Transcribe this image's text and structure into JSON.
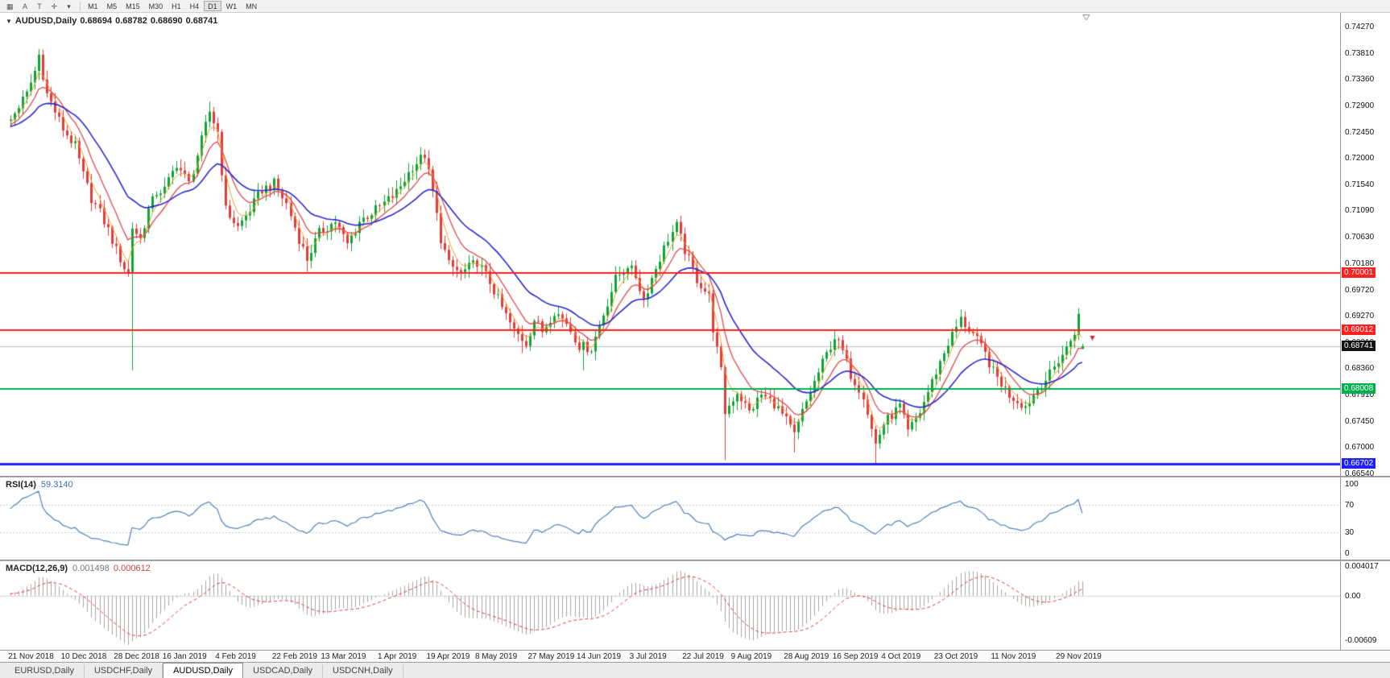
{
  "toolbar": {
    "icon_buttons": [
      {
        "name": "tile-windows-icon",
        "glyph": "▦"
      },
      {
        "name": "cursor-tool-icon",
        "glyph": "A"
      },
      {
        "name": "text-tool-icon",
        "glyph": "T"
      },
      {
        "name": "crosshair-tool-icon",
        "glyph": "✛"
      },
      {
        "name": "tools-dropdown-icon",
        "glyph": "▾"
      }
    ],
    "timeframes": [
      "M1",
      "M5",
      "M15",
      "M30",
      "H1",
      "H4",
      "D1",
      "W1",
      "MN"
    ],
    "active_timeframe": "D1"
  },
  "chart": {
    "symbol_icon": "▼",
    "symbol": "AUDUSD,Daily",
    "ohlc": {
      "open": "0.68694",
      "high": "0.68782",
      "low": "0.68690",
      "close": "0.68741"
    }
  },
  "rsi": {
    "name": "RSI(14)",
    "value": "59.3140",
    "line_color": "#4F81BD",
    "levels": [
      70,
      30
    ],
    "ticks": [
      {
        "label": "100",
        "value": 100
      },
      {
        "label": "70",
        "value": 70
      },
      {
        "label": "30",
        "value": 30
      },
      {
        "label": "0",
        "value": 0
      }
    ]
  },
  "macd": {
    "name": "MACD(12,26,9)",
    "main_value": "0.001498",
    "signal_value": "0.000612",
    "histogram_color": "#A6A6A6",
    "signal_color": "#DD3C3C",
    "ticks": [
      {
        "label": "0.004017",
        "value": 0.004017
      },
      {
        "label": "0.00",
        "value": 0
      },
      {
        "label": "-0.00609",
        "value": -0.00609
      }
    ]
  },
  "date_axis": {
    "labels": [
      {
        "text": "21 Nov 2018",
        "slot": 2
      },
      {
        "text": "10 Dec 2018",
        "slot": 15
      },
      {
        "text": "28 Dec 2018",
        "slot": 28
      },
      {
        "text": "16 Jan 2019",
        "slot": 40
      },
      {
        "text": "4 Feb 2019",
        "slot": 53
      },
      {
        "text": "22 Feb 2019",
        "slot": 67
      },
      {
        "text": "13 Mar 2019",
        "slot": 79
      },
      {
        "text": "1 Apr 2019",
        "slot": 93
      },
      {
        "text": "19 Apr 2019",
        "slot": 105
      },
      {
        "text": "8 May 2019",
        "slot": 117
      },
      {
        "text": "27 May 2019",
        "slot": 130
      },
      {
        "text": "14 Jun 2019",
        "slot": 142
      },
      {
        "text": "3 Jul 2019",
        "slot": 155
      },
      {
        "text": "22 Jul 2019",
        "slot": 168
      },
      {
        "text": "9 Aug 2019",
        "slot": 180
      },
      {
        "text": "28 Aug 2019",
        "slot": 193
      },
      {
        "text": "16 Sep 2019",
        "slot": 205
      },
      {
        "text": "4 Oct 2019",
        "slot": 217
      },
      {
        "text": "23 Oct 2019",
        "slot": 230
      },
      {
        "text": "11 Nov 2019",
        "slot": 244
      },
      {
        "text": "29 Nov 2019",
        "slot": 260
      }
    ]
  },
  "tabs": {
    "items": [
      "EURUSD,Daily",
      "USDCHF,Daily",
      "AUDUSD,Daily",
      "USDCAD,Daily",
      "USDCNH,Daily"
    ],
    "active_index": 2
  },
  "chart_data": {
    "type": "candlestick",
    "symbol": "AUDUSD",
    "period": "Daily",
    "slots_total": 330,
    "price_min": 0.66497,
    "price_max": 0.74507,
    "y_ticks": [
      "0.74270",
      "0.73810",
      "0.73360",
      "0.72900",
      "0.72450",
      "0.72000",
      "0.71540",
      "0.71090",
      "0.70630",
      "0.70180",
      "0.69720",
      "0.69270",
      "0.68810",
      "0.68360",
      "0.67910",
      "0.67450",
      "0.67000",
      "0.66540"
    ],
    "close_anchors": [
      [
        -30,
        0.723
      ],
      [
        -20,
        0.727
      ],
      [
        -10,
        0.7245
      ],
      [
        0,
        0.7255
      ],
      [
        2,
        0.7265
      ],
      [
        4,
        0.729
      ],
      [
        6,
        0.731
      ],
      [
        8,
        0.735
      ],
      [
        9,
        0.7378
      ],
      [
        11,
        0.731
      ],
      [
        13,
        0.728
      ],
      [
        15,
        0.725
      ],
      [
        18,
        0.722
      ],
      [
        20,
        0.717
      ],
      [
        22,
        0.713
      ],
      [
        24,
        0.7105
      ],
      [
        26,
        0.7075
      ],
      [
        28,
        0.704
      ],
      [
        30,
        0.701
      ],
      [
        31,
        0.7
      ],
      [
        32,
        0.708
      ],
      [
        34,
        0.706
      ],
      [
        36,
        0.711
      ],
      [
        38,
        0.714
      ],
      [
        40,
        0.7145
      ],
      [
        43,
        0.719
      ],
      [
        46,
        0.7155
      ],
      [
        49,
        0.723
      ],
      [
        51,
        0.728
      ],
      [
        53,
        0.7245
      ],
      [
        55,
        0.711
      ],
      [
        58,
        0.708
      ],
      [
        61,
        0.711
      ],
      [
        64,
        0.7145
      ],
      [
        67,
        0.7155
      ],
      [
        70,
        0.712
      ],
      [
        73,
        0.706
      ],
      [
        75,
        0.7025
      ],
      [
        78,
        0.707
      ],
      [
        82,
        0.709
      ],
      [
        85,
        0.705
      ],
      [
        88,
        0.709
      ],
      [
        93,
        0.7115
      ],
      [
        97,
        0.714
      ],
      [
        101,
        0.7185
      ],
      [
        104,
        0.7205
      ],
      [
        106,
        0.714
      ],
      [
        108,
        0.706
      ],
      [
        110,
        0.7015
      ],
      [
        113,
        0.7
      ],
      [
        117,
        0.702
      ],
      [
        120,
        0.6985
      ],
      [
        123,
        0.694
      ],
      [
        126,
        0.69
      ],
      [
        129,
        0.688
      ],
      [
        131,
        0.692
      ],
      [
        133,
        0.69
      ],
      [
        136,
        0.6935
      ],
      [
        139,
        0.6915
      ],
      [
        142,
        0.6875
      ],
      [
        145,
        0.687
      ],
      [
        148,
        0.693
      ],
      [
        151,
        0.699
      ],
      [
        154,
        0.7015
      ],
      [
        156,
        0.6995
      ],
      [
        158,
        0.6955
      ],
      [
        161,
        0.701
      ],
      [
        164,
        0.706
      ],
      [
        166,
        0.7082
      ],
      [
        168,
        0.704
      ],
      [
        171,
        0.699
      ],
      [
        174,
        0.696
      ],
      [
        175,
        0.6905
      ],
      [
        177,
        0.683
      ],
      [
        178,
        0.676
      ],
      [
        181,
        0.6795
      ],
      [
        184,
        0.676
      ],
      [
        187,
        0.679
      ],
      [
        190,
        0.6775
      ],
      [
        193,
        0.6745
      ],
      [
        195,
        0.672
      ],
      [
        197,
        0.676
      ],
      [
        199,
        0.6795
      ],
      [
        202,
        0.6845
      ],
      [
        205,
        0.689
      ],
      [
        207,
        0.6865
      ],
      [
        209,
        0.6825
      ],
      [
        212,
        0.679
      ],
      [
        214,
        0.673
      ],
      [
        215,
        0.6705
      ],
      [
        217,
        0.674
      ],
      [
        221,
        0.677
      ],
      [
        223,
        0.6725
      ],
      [
        226,
        0.676
      ],
      [
        230,
        0.683
      ],
      [
        233,
        0.688
      ],
      [
        236,
        0.692
      ],
      [
        239,
        0.6895
      ],
      [
        242,
        0.686
      ],
      [
        244,
        0.683
      ],
      [
        248,
        0.679
      ],
      [
        252,
        0.677
      ],
      [
        255,
        0.68
      ],
      [
        258,
        0.6825
      ],
      [
        260,
        0.685
      ],
      [
        262,
        0.687
      ],
      [
        264,
        0.69
      ],
      [
        265,
        0.693
      ],
      [
        266,
        0.68741
      ]
    ],
    "wick_spikes": [
      {
        "slot": 9,
        "high": 0.7388
      },
      {
        "slot": 32,
        "low": 0.6832
      },
      {
        "slot": 51,
        "high": 0.7297
      },
      {
        "slot": 75,
        "low": 0.7003
      },
      {
        "slot": 128,
        "low": 0.6862
      },
      {
        "slot": 143,
        "low": 0.6832
      },
      {
        "slot": 178,
        "low": 0.6677
      },
      {
        "slot": 195,
        "low": 0.669
      },
      {
        "slot": 215,
        "low": 0.667
      },
      {
        "slot": 265,
        "high": 0.694
      }
    ],
    "last_candle": {
      "open": 0.68694,
      "high": 0.68782,
      "low": 0.6869,
      "close": 0.68741
    },
    "moving_averages": [
      {
        "period": 4,
        "color": "#F0A030",
        "width": 1
      },
      {
        "period": 9,
        "color": "#E04848",
        "width": 1.3
      },
      {
        "period": 22,
        "color": "#2828D0",
        "width": 1.6
      }
    ],
    "h_lines": [
      {
        "price": 0.70001,
        "label": "0.70001",
        "color": "#FF2020",
        "width": 2
      },
      {
        "price": 0.69012,
        "label": "0.69012",
        "color": "#FF2020",
        "width": 2
      },
      {
        "price": 0.68008,
        "label": "0.68008",
        "color": "#00B050",
        "width": 2
      },
      {
        "price": 0.66702,
        "label": "0.66702",
        "color": "#2020FF",
        "width": 3
      }
    ],
    "bid_line": {
      "price": 0.68741,
      "label": "0.68741",
      "color": "#BDBDBD",
      "label_bg": "#141414"
    },
    "marker": {
      "slot": 269,
      "price": 0.6888,
      "type": "down-arrow",
      "color": "#E02020"
    },
    "candle_up_color": "#0EA534",
    "candle_down_color": "#E23B3B",
    "rsi_period": 14,
    "macd_params": [
      12,
      26,
      9
    ]
  }
}
